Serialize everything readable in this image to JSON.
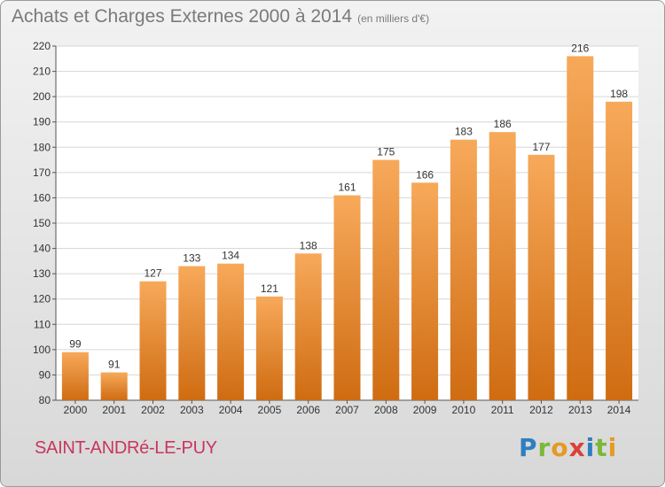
{
  "title": "Achats et Charges Externes 2000 à 2014",
  "subtitle": "(en milliers d'€)",
  "place": "SAINT-ANDRé-LE-PUY",
  "logo": "Proxiti",
  "colors": {
    "bar_light": "#f7a95a",
    "bar_dark": "#cf6c12",
    "title": "#7a7a7a",
    "place": "#c8365f"
  },
  "chart_data": {
    "type": "bar",
    "categories": [
      "2000",
      "2001",
      "2002",
      "2003",
      "2004",
      "2005",
      "2006",
      "2007",
      "2008",
      "2009",
      "2010",
      "2011",
      "2012",
      "2013",
      "2014"
    ],
    "values": [
      99,
      91,
      127,
      133,
      134,
      121,
      138,
      161,
      175,
      166,
      183,
      186,
      177,
      216,
      198
    ],
    "ylim": [
      80,
      220
    ],
    "yticks": [
      80,
      90,
      100,
      110,
      120,
      130,
      140,
      150,
      160,
      170,
      180,
      190,
      200,
      210,
      220
    ],
    "grid": true,
    "data_labels": true
  }
}
